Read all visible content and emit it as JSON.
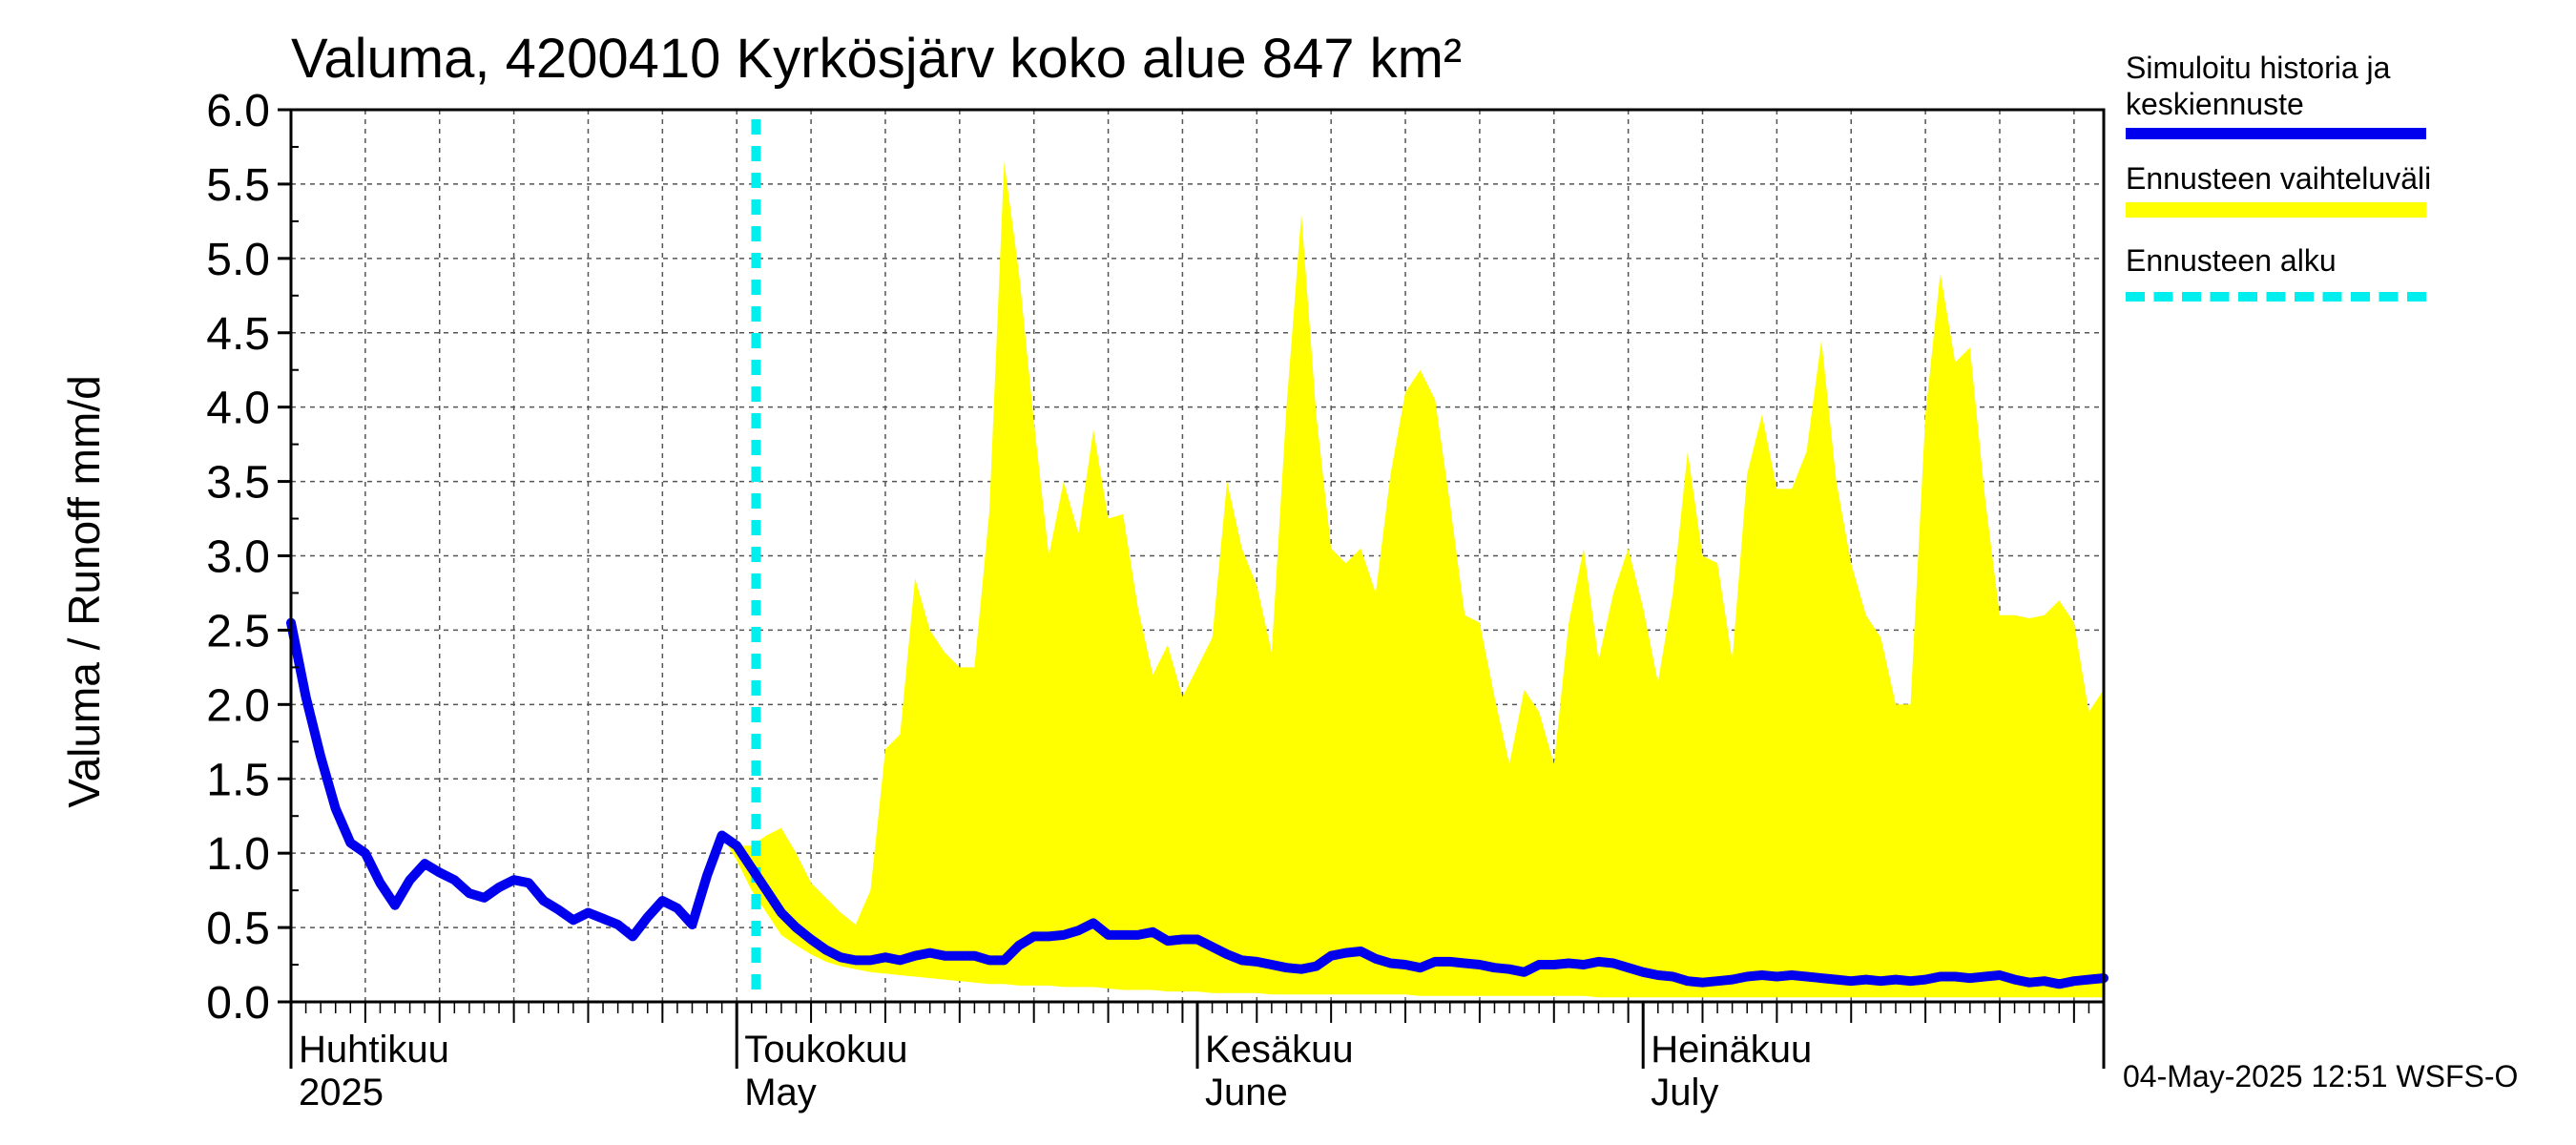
{
  "chart_data": {
    "type": "area",
    "title": "Valuma, 4200410 Kyrkösjärv koko alue 847 km²",
    "ylabel": "Valuma / Runoff     mm/d",
    "ylim": [
      0,
      6.0
    ],
    "yticks": [
      "0.0",
      "0.5",
      "1.0",
      "1.5",
      "2.0",
      "2.5",
      "3.0",
      "3.5",
      "4.0",
      "4.5",
      "5.0",
      "5.5",
      "6.0"
    ],
    "x_start_date": "2025-04-01",
    "x_range_days": [
      0,
      122
    ],
    "forecast_start_day": 31.3,
    "month_labels": [
      {
        "day": 0,
        "fi": "Huhtikuu",
        "en": "2025"
      },
      {
        "day": 30,
        "fi": "Toukokuu",
        "en": "May"
      },
      {
        "day": 61,
        "fi": "Kesäkuu",
        "en": "June"
      },
      {
        "day": 91,
        "fi": "Heinäkuu",
        "en": "July"
      }
    ],
    "series": [
      {
        "name": "Simuloitu historia ja keskiennuste",
        "color": "#0000ee",
        "points": [
          [
            0,
            2.55
          ],
          [
            1,
            2.05
          ],
          [
            2,
            1.65
          ],
          [
            3,
            1.3
          ],
          [
            4,
            1.07
          ],
          [
            5,
            1.0
          ],
          [
            6,
            0.8
          ],
          [
            7,
            0.65
          ],
          [
            8,
            0.82
          ],
          [
            9,
            0.93
          ],
          [
            10,
            0.87
          ],
          [
            11,
            0.82
          ],
          [
            12,
            0.73
          ],
          [
            13,
            0.7
          ],
          [
            14,
            0.77
          ],
          [
            15,
            0.82
          ],
          [
            16,
            0.8
          ],
          [
            17,
            0.68
          ],
          [
            18,
            0.62
          ],
          [
            19,
            0.55
          ],
          [
            20,
            0.6
          ],
          [
            21,
            0.56
          ],
          [
            22,
            0.52
          ],
          [
            23,
            0.44
          ],
          [
            24,
            0.57
          ],
          [
            25,
            0.68
          ],
          [
            26,
            0.63
          ],
          [
            27,
            0.52
          ],
          [
            28,
            0.85
          ],
          [
            29,
            1.12
          ],
          [
            30,
            1.05
          ],
          [
            31,
            0.9
          ],
          [
            32,
            0.75
          ],
          [
            33,
            0.6
          ],
          [
            34,
            0.5
          ],
          [
            35,
            0.42
          ],
          [
            36,
            0.35
          ],
          [
            37,
            0.3
          ],
          [
            38,
            0.28
          ],
          [
            39,
            0.28
          ],
          [
            40,
            0.3
          ],
          [
            41,
            0.28
          ],
          [
            42,
            0.31
          ],
          [
            43,
            0.33
          ],
          [
            44,
            0.31
          ],
          [
            45,
            0.31
          ],
          [
            46,
            0.31
          ],
          [
            47,
            0.28
          ],
          [
            48,
            0.28
          ],
          [
            49,
            0.38
          ],
          [
            50,
            0.44
          ],
          [
            51,
            0.44
          ],
          [
            52,
            0.45
          ],
          [
            53,
            0.48
          ],
          [
            54,
            0.53
          ],
          [
            55,
            0.45
          ],
          [
            56,
            0.45
          ],
          [
            57,
            0.45
          ],
          [
            58,
            0.47
          ],
          [
            59,
            0.41
          ],
          [
            60,
            0.42
          ],
          [
            61,
            0.42
          ],
          [
            62,
            0.37
          ],
          [
            63,
            0.32
          ],
          [
            64,
            0.28
          ],
          [
            65,
            0.27
          ],
          [
            66,
            0.25
          ],
          [
            67,
            0.23
          ],
          [
            68,
            0.22
          ],
          [
            69,
            0.24
          ],
          [
            70,
            0.31
          ],
          [
            71,
            0.33
          ],
          [
            72,
            0.34
          ],
          [
            73,
            0.29
          ],
          [
            74,
            0.26
          ],
          [
            75,
            0.25
          ],
          [
            76,
            0.23
          ],
          [
            77,
            0.27
          ],
          [
            78,
            0.27
          ],
          [
            79,
            0.26
          ],
          [
            80,
            0.25
          ],
          [
            81,
            0.23
          ],
          [
            82,
            0.22
          ],
          [
            83,
            0.2
          ],
          [
            84,
            0.25
          ],
          [
            85,
            0.25
          ],
          [
            86,
            0.26
          ],
          [
            87,
            0.25
          ],
          [
            88,
            0.27
          ],
          [
            89,
            0.26
          ],
          [
            90,
            0.23
          ],
          [
            91,
            0.2
          ],
          [
            92,
            0.18
          ],
          [
            93,
            0.17
          ],
          [
            94,
            0.14
          ],
          [
            95,
            0.13
          ],
          [
            96,
            0.14
          ],
          [
            97,
            0.15
          ],
          [
            98,
            0.17
          ],
          [
            99,
            0.18
          ],
          [
            100,
            0.17
          ],
          [
            101,
            0.18
          ],
          [
            102,
            0.17
          ],
          [
            103,
            0.16
          ],
          [
            104,
            0.15
          ],
          [
            105,
            0.14
          ],
          [
            106,
            0.15
          ],
          [
            107,
            0.14
          ],
          [
            108,
            0.15
          ],
          [
            109,
            0.14
          ],
          [
            110,
            0.15
          ],
          [
            111,
            0.17
          ],
          [
            112,
            0.17
          ],
          [
            113,
            0.16
          ],
          [
            114,
            0.17
          ],
          [
            115,
            0.18
          ],
          [
            116,
            0.15
          ],
          [
            117,
            0.13
          ],
          [
            118,
            0.14
          ],
          [
            119,
            0.12
          ],
          [
            120,
            0.14
          ],
          [
            121,
            0.15
          ],
          [
            122,
            0.16
          ]
        ]
      },
      {
        "name": "Ennusteen vaihteluväli",
        "color": "#ffff00",
        "upper": [
          [
            29,
            1.12
          ],
          [
            30,
            1.05
          ],
          [
            31,
            1.05
          ],
          [
            32,
            1.12
          ],
          [
            33,
            1.17
          ],
          [
            34,
            1.0
          ],
          [
            35,
            0.8
          ],
          [
            36,
            0.7
          ],
          [
            37,
            0.6
          ],
          [
            38,
            0.52
          ],
          [
            39,
            0.75
          ],
          [
            40,
            1.7
          ],
          [
            41,
            1.8
          ],
          [
            42,
            2.85
          ],
          [
            43,
            2.5
          ],
          [
            44,
            2.35
          ],
          [
            45,
            2.25
          ],
          [
            46,
            2.25
          ],
          [
            47,
            3.3
          ],
          [
            48,
            5.65
          ],
          [
            49,
            4.9
          ],
          [
            50,
            3.9
          ],
          [
            51,
            3.0
          ],
          [
            52,
            3.5
          ],
          [
            53,
            3.15
          ],
          [
            54,
            3.85
          ],
          [
            55,
            3.25
          ],
          [
            56,
            3.28
          ],
          [
            57,
            2.65
          ],
          [
            58,
            2.2
          ],
          [
            59,
            2.4
          ],
          [
            60,
            2.05
          ],
          [
            61,
            2.25
          ],
          [
            62,
            2.45
          ],
          [
            63,
            3.5
          ],
          [
            64,
            3.05
          ],
          [
            65,
            2.8
          ],
          [
            66,
            2.35
          ],
          [
            67,
            4.0
          ],
          [
            68,
            5.3
          ],
          [
            69,
            3.95
          ],
          [
            70,
            3.05
          ],
          [
            71,
            2.95
          ],
          [
            72,
            3.05
          ],
          [
            73,
            2.75
          ],
          [
            74,
            3.55
          ],
          [
            75,
            4.1
          ],
          [
            76,
            4.25
          ],
          [
            77,
            4.05
          ],
          [
            78,
            3.35
          ],
          [
            79,
            2.6
          ],
          [
            80,
            2.55
          ],
          [
            81,
            2.05
          ],
          [
            82,
            1.6
          ],
          [
            83,
            2.1
          ],
          [
            84,
            1.95
          ],
          [
            85,
            1.6
          ],
          [
            86,
            2.55
          ],
          [
            87,
            3.05
          ],
          [
            88,
            2.3
          ],
          [
            89,
            2.75
          ],
          [
            90,
            3.05
          ],
          [
            91,
            2.65
          ],
          [
            92,
            2.15
          ],
          [
            93,
            2.75
          ],
          [
            94,
            3.7
          ],
          [
            95,
            3.0
          ],
          [
            96,
            2.95
          ],
          [
            97,
            2.3
          ],
          [
            98,
            3.55
          ],
          [
            99,
            3.95
          ],
          [
            100,
            3.45
          ],
          [
            101,
            3.45
          ],
          [
            102,
            3.7
          ],
          [
            103,
            4.45
          ],
          [
            104,
            3.5
          ],
          [
            105,
            2.95
          ],
          [
            106,
            2.6
          ],
          [
            107,
            2.45
          ],
          [
            108,
            2.0
          ],
          [
            109,
            2.0
          ],
          [
            110,
            3.95
          ],
          [
            111,
            4.9
          ],
          [
            112,
            4.3
          ],
          [
            113,
            4.4
          ],
          [
            114,
            3.4
          ],
          [
            115,
            2.6
          ],
          [
            116,
            2.6
          ],
          [
            117,
            2.58
          ],
          [
            118,
            2.6
          ],
          [
            119,
            2.7
          ],
          [
            120,
            2.55
          ],
          [
            121,
            1.95
          ],
          [
            122,
            2.1
          ]
        ],
        "lower": [
          [
            29,
            1.12
          ],
          [
            30,
            0.95
          ],
          [
            31,
            0.75
          ],
          [
            32,
            0.6
          ],
          [
            33,
            0.45
          ],
          [
            34,
            0.38
          ],
          [
            35,
            0.32
          ],
          [
            36,
            0.27
          ],
          [
            37,
            0.24
          ],
          [
            38,
            0.22
          ],
          [
            39,
            0.2
          ],
          [
            40,
            0.19
          ],
          [
            41,
            0.18
          ],
          [
            42,
            0.17
          ],
          [
            43,
            0.16
          ],
          [
            44,
            0.15
          ],
          [
            45,
            0.14
          ],
          [
            46,
            0.13
          ],
          [
            47,
            0.12
          ],
          [
            48,
            0.12
          ],
          [
            49,
            0.11
          ],
          [
            50,
            0.11
          ],
          [
            51,
            0.11
          ],
          [
            52,
            0.1
          ],
          [
            53,
            0.1
          ],
          [
            54,
            0.1
          ],
          [
            55,
            0.09
          ],
          [
            56,
            0.08
          ],
          [
            57,
            0.08
          ],
          [
            58,
            0.08
          ],
          [
            59,
            0.07
          ],
          [
            60,
            0.07
          ],
          [
            61,
            0.07
          ],
          [
            62,
            0.06
          ],
          [
            63,
            0.06
          ],
          [
            64,
            0.06
          ],
          [
            65,
            0.06
          ],
          [
            66,
            0.05
          ],
          [
            67,
            0.05
          ],
          [
            68,
            0.05
          ],
          [
            69,
            0.05
          ],
          [
            70,
            0.05
          ],
          [
            71,
            0.05
          ],
          [
            72,
            0.05
          ],
          [
            73,
            0.05
          ],
          [
            74,
            0.05
          ],
          [
            75,
            0.05
          ],
          [
            76,
            0.04
          ],
          [
            77,
            0.04
          ],
          [
            78,
            0.04
          ],
          [
            79,
            0.04
          ],
          [
            80,
            0.04
          ],
          [
            81,
            0.04
          ],
          [
            82,
            0.04
          ],
          [
            83,
            0.04
          ],
          [
            84,
            0.04
          ],
          [
            85,
            0.04
          ],
          [
            86,
            0.04
          ],
          [
            87,
            0.04
          ],
          [
            88,
            0.03
          ],
          [
            89,
            0.03
          ],
          [
            90,
            0.03
          ],
          [
            91,
            0.03
          ],
          [
            92,
            0.03
          ],
          [
            93,
            0.03
          ],
          [
            94,
            0.03
          ],
          [
            95,
            0.03
          ],
          [
            96,
            0.03
          ],
          [
            97,
            0.03
          ],
          [
            98,
            0.03
          ],
          [
            99,
            0.03
          ],
          [
            100,
            0.03
          ],
          [
            101,
            0.03
          ],
          [
            102,
            0.03
          ],
          [
            103,
            0.03
          ],
          [
            104,
            0.03
          ],
          [
            105,
            0.03
          ],
          [
            106,
            0.03
          ],
          [
            107,
            0.03
          ],
          [
            108,
            0.03
          ],
          [
            109,
            0.03
          ],
          [
            110,
            0.03
          ],
          [
            111,
            0.03
          ],
          [
            112,
            0.03
          ],
          [
            113,
            0.03
          ],
          [
            114,
            0.03
          ],
          [
            115,
            0.03
          ],
          [
            116,
            0.03
          ],
          [
            117,
            0.03
          ],
          [
            118,
            0.03
          ],
          [
            119,
            0.03
          ],
          [
            120,
            0.03
          ],
          [
            121,
            0.03
          ],
          [
            122,
            0.03
          ]
        ]
      },
      {
        "name": "Ennusteen alku",
        "color": "#00eeee"
      }
    ]
  },
  "legend": {
    "blue_line1": "Simuloitu historia ja",
    "blue_line2": "keskiennuste",
    "band": "Ennusteen vaihteluväli",
    "start": "Ennusteen alku"
  },
  "footer": "04-May-2025 12:51 WSFS-O"
}
